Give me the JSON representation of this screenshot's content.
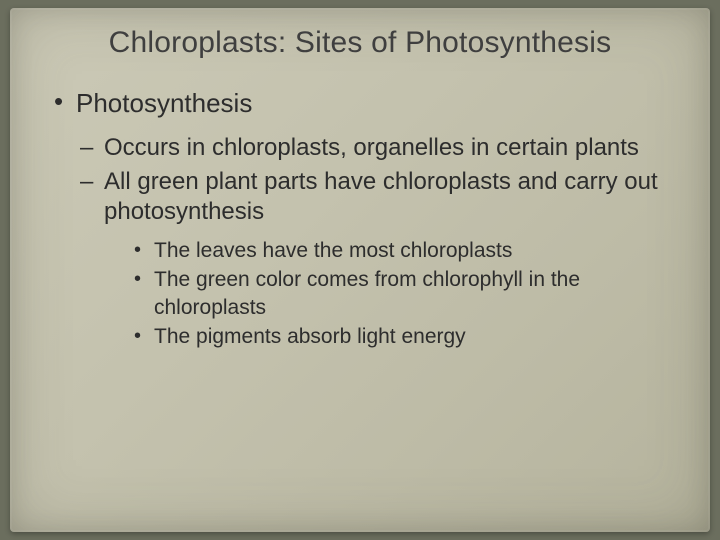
{
  "slide": {
    "background_color": "#6b6e5e",
    "paper_gradient": [
      "#cbc9b6",
      "#c4c2ae",
      "#bdbba6",
      "#b5b39d"
    ],
    "title": "Chloroplasts: Sites of Photosynthesis",
    "title_fontsize": 30,
    "title_color": "#3f3f3f",
    "text_color": "#2d2d2d",
    "font_family": "Arial",
    "bullets_lvl1": [
      {
        "text": "Photosynthesis",
        "fontsize": 26,
        "children": [
          {
            "text": "Occurs in chloroplasts, organelles in certain plants",
            "fontsize": 24
          },
          {
            "text": "All green plant parts have chloroplasts and carry out photosynthesis",
            "fontsize": 24,
            "children": [
              {
                "text": "The leaves have the most chloroplasts",
                "fontsize": 21
              },
              {
                "text": "The green color comes from chlorophyll in the chloroplasts",
                "fontsize": 21
              },
              {
                "text": "The pigments absorb light energy",
                "fontsize": 21
              }
            ]
          }
        ]
      }
    ]
  }
}
